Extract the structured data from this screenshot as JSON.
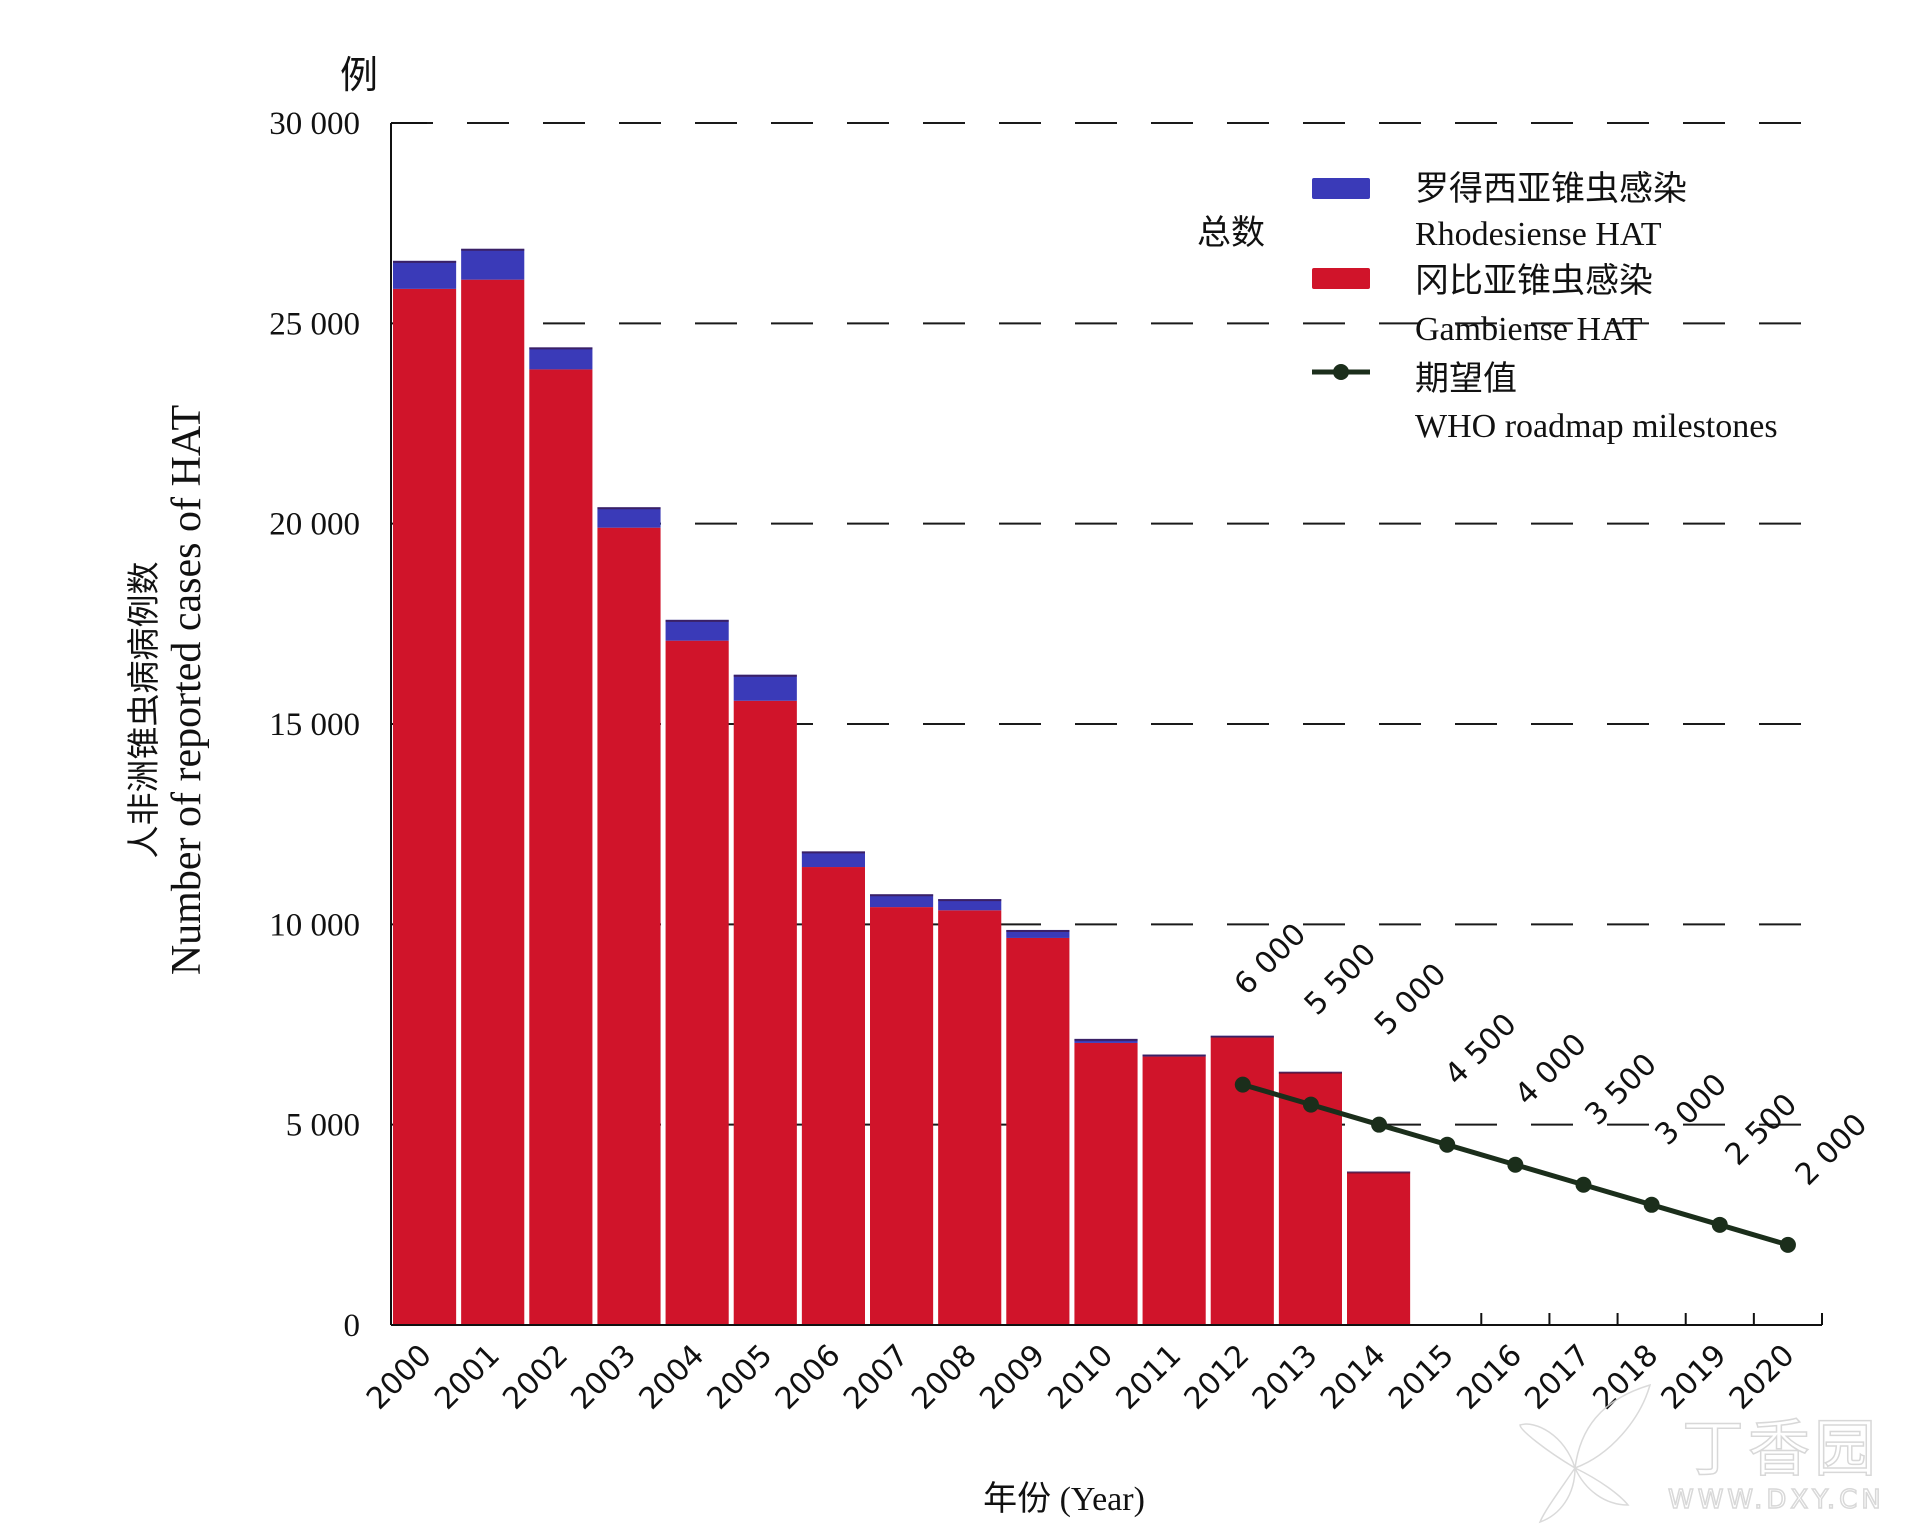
{
  "chart_data": {
    "type": "bar",
    "stacked": true,
    "title": "",
    "xlabel": "年份 (Year)",
    "ylabel_cn": "人非洲锥虫病病例数",
    "ylabel": "Number of reported cases of HAT",
    "y_unit": "例",
    "ylim": [
      0,
      30000
    ],
    "yticks": [
      0,
      5000,
      10000,
      15000,
      20000,
      25000,
      30000
    ],
    "ytick_labels": [
      "0",
      "5 000",
      "10 000",
      "15 000",
      "20 000",
      "25 000",
      "30 000"
    ],
    "grid": "dashed horizontal",
    "categories": [
      "2000",
      "2001",
      "2002",
      "2003",
      "2004",
      "2005",
      "2006",
      "2007",
      "2008",
      "2009",
      "2010",
      "2011",
      "2012",
      "2013",
      "2014",
      "2015",
      "2016",
      "2017",
      "2018",
      "2019",
      "2020"
    ],
    "series": [
      {
        "name": "冈比亚锥虫感染 Gambiense HAT",
        "color": "#d0142a",
        "values": [
          25860,
          26090,
          23850,
          19900,
          17080,
          15580,
          11430,
          10430,
          10350,
          9660,
          7040,
          6700,
          7180,
          6300,
          3810,
          null,
          null,
          null,
          null,
          null,
          null
        ]
      },
      {
        "name": "罗得西亚锥虫感染 Rhodesiense HAT",
        "color": "#3a3ab8",
        "values": [
          700,
          770,
          550,
          510,
          520,
          650,
          390,
          320,
          280,
          200,
          100,
          50,
          40,
          20,
          20,
          null,
          null,
          null,
          null,
          null,
          null
        ]
      },
      {
        "name": "期望值 WHO roadmap milestones",
        "type": "line",
        "color": "#1b2e1b",
        "values": [
          null,
          null,
          null,
          null,
          null,
          null,
          null,
          null,
          null,
          null,
          null,
          null,
          6000,
          5500,
          5000,
          4500,
          4000,
          3500,
          3000,
          2500,
          2000
        ],
        "labels": [
          "6 000",
          "5 500",
          "5 000",
          "4 500",
          "4 000",
          "3 500",
          "3 000",
          "2 500",
          "2 000"
        ]
      }
    ],
    "totals": [
      26560,
      26860,
      24400,
      20410,
      17600,
      16230,
      11820,
      10750,
      10630,
      9860,
      7140,
      6750,
      7220,
      6320,
      3830,
      null,
      null,
      null,
      null,
      null,
      null
    ],
    "legend": {
      "position": "upper right",
      "group_label": "总数",
      "items": [
        {
          "cn": "罗得西亚锥虫感染",
          "en": "Rhodesiense HAT",
          "color": "#3a3ab8",
          "kind": "swatch"
        },
        {
          "cn": "冈比亚锥虫感染",
          "en": "Gambiense HAT",
          "color": "#d0142a",
          "kind": "swatch"
        },
        {
          "cn": "期望值",
          "en": "WHO roadmap milestones",
          "color": "#1b2e1b",
          "kind": "line-marker"
        }
      ]
    }
  },
  "watermark": {
    "cn": "丁香园",
    "url_text": "WWW.DXY.CN"
  }
}
